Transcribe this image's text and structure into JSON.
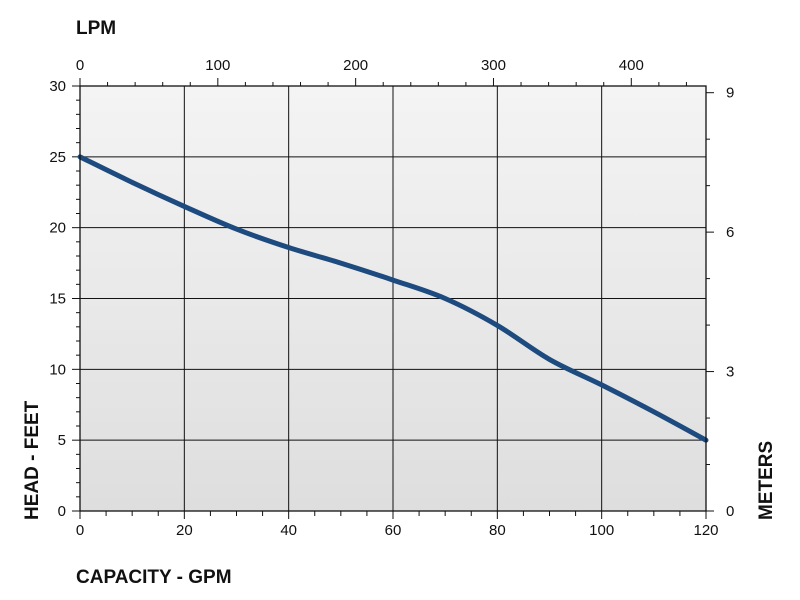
{
  "chart_data": {
    "type": "line",
    "title": "",
    "xlabel": "CAPACITY - GPM",
    "ylabel": "HEAD - FEET",
    "x2label": "LPM",
    "y2label": "METERS",
    "xlim": [
      0,
      120
    ],
    "ylim": [
      0,
      30
    ],
    "x_ticks": [
      0,
      20,
      40,
      60,
      80,
      100,
      120
    ],
    "y_ticks": [
      0,
      5,
      10,
      15,
      20,
      25,
      30
    ],
    "x2_ticks": [
      0,
      100,
      200,
      300,
      400
    ],
    "x2_per_x": 3.785,
    "y2_ticks": [
      0,
      3,
      6,
      9
    ],
    "y2_per_y": 0.3048,
    "grid": true,
    "series": [
      {
        "color": "#1d4a7f",
        "x": [
          0,
          10,
          20,
          30,
          40,
          50,
          60,
          70,
          80,
          90,
          100,
          110,
          120
        ],
        "y": [
          25,
          23.2,
          21.5,
          19.9,
          18.6,
          17.5,
          16.3,
          15,
          13.1,
          10.7,
          8.9,
          7,
          5
        ]
      }
    ]
  }
}
